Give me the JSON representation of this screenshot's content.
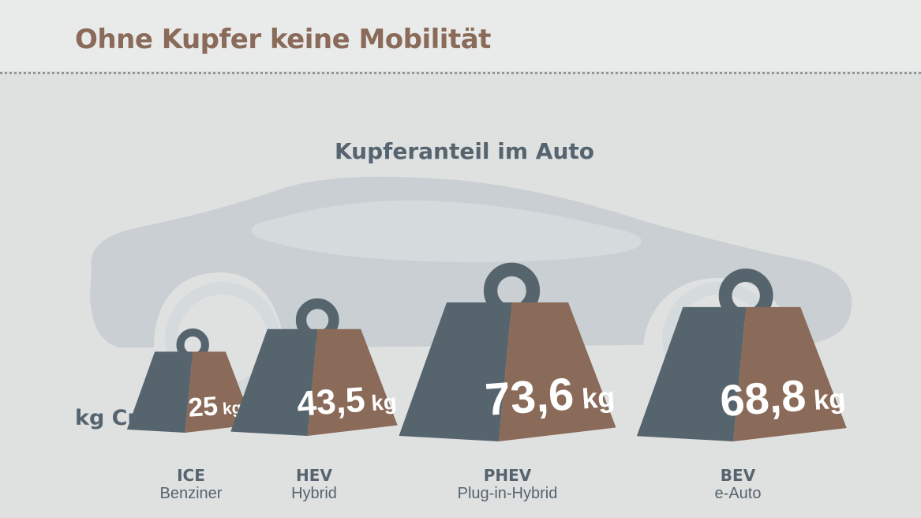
{
  "page_title": "Ohne Kupfer keine Mobilität",
  "chart_data": {
    "type": "bar",
    "title": "Kupferanteil im Auto",
    "ylabel": "kg Cu",
    "unit": "kg",
    "categories": [
      "ICE",
      "HEV",
      "PHEV",
      "BEV"
    ],
    "category_names": [
      "Benziner",
      "Hybrid",
      "Plug-in-Hybrid",
      "e-Auto"
    ],
    "values": [
      25,
      43.5,
      73.6,
      68.8
    ],
    "value_labels": [
      "25",
      "43,5",
      "73,6",
      "68,8"
    ]
  },
  "colors": {
    "title": "#8a6a58",
    "text": "#55646e",
    "weight_dark": "#56646d",
    "weight_copper": "#8a6a58",
    "car_silhouette": "#c9cfd3",
    "background": "#dfe1e1"
  }
}
